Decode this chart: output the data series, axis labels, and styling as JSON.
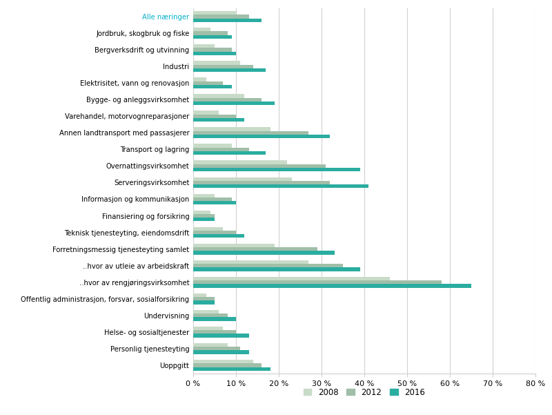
{
  "categories": [
    "Alle næringer",
    "Jordbruk, skogbruk og fiske",
    "Bergverksdrift og utvinning",
    "Industri",
    "Elektrisitet, vann og renovasjon",
    "Bygge- og anleggsvirksomhet",
    "Varehandel, motorvognreparasjoner",
    "Annen landtransport med passasjerer",
    "Transport og lagring",
    "Overnattingsvirksomhet",
    "Serveringsvirksomhet",
    "Informasjon og kommunikasjon",
    "Finansiering og forsikring",
    "Teknisk tjenesteyting, eiendomsdrift",
    "Forretningsmessig tjenesteyting samlet",
    "..hvor av utleie av arbeidskraft",
    "..hvor av rengjøringsvirksomhet",
    "Offentlig administrasjon, forsvar, sosialforsikring",
    "Undervisning",
    "Helse- og sosialtjenester",
    "Personlig tjenesteyting",
    "Uoppgitt"
  ],
  "values_2008": [
    10,
    4,
    5,
    11,
    3,
    12,
    6,
    18,
    9,
    22,
    23,
    5,
    4,
    7,
    19,
    27,
    46,
    3,
    6,
    7,
    8,
    14
  ],
  "values_2012": [
    13,
    8,
    9,
    14,
    7,
    16,
    10,
    27,
    13,
    31,
    32,
    9,
    5,
    10,
    29,
    35,
    58,
    5,
    8,
    10,
    11,
    16
  ],
  "values_2016": [
    16,
    9,
    10,
    17,
    9,
    19,
    12,
    32,
    17,
    39,
    41,
    10,
    5,
    12,
    33,
    39,
    65,
    5,
    10,
    13,
    13,
    18
  ],
  "color_2008": "#c8dbc8",
  "color_2012": "#a0bea8",
  "color_2016": "#2aada0",
  "title_color": "#00b0c8",
  "xlim": [
    0,
    80
  ],
  "xticks": [
    0,
    10,
    20,
    30,
    40,
    50,
    60,
    70,
    80
  ],
  "xtick_labels": [
    "0 %",
    "10 %",
    "20 %",
    "30 %",
    "40 %",
    "50 %",
    "60 %",
    "70 %",
    "80 %"
  ],
  "legend_labels": [
    "2008",
    "2012",
    "2016"
  ],
  "bar_height": 0.22,
  "figsize": [
    8.0,
    6.01
  ],
  "dpi": 100
}
